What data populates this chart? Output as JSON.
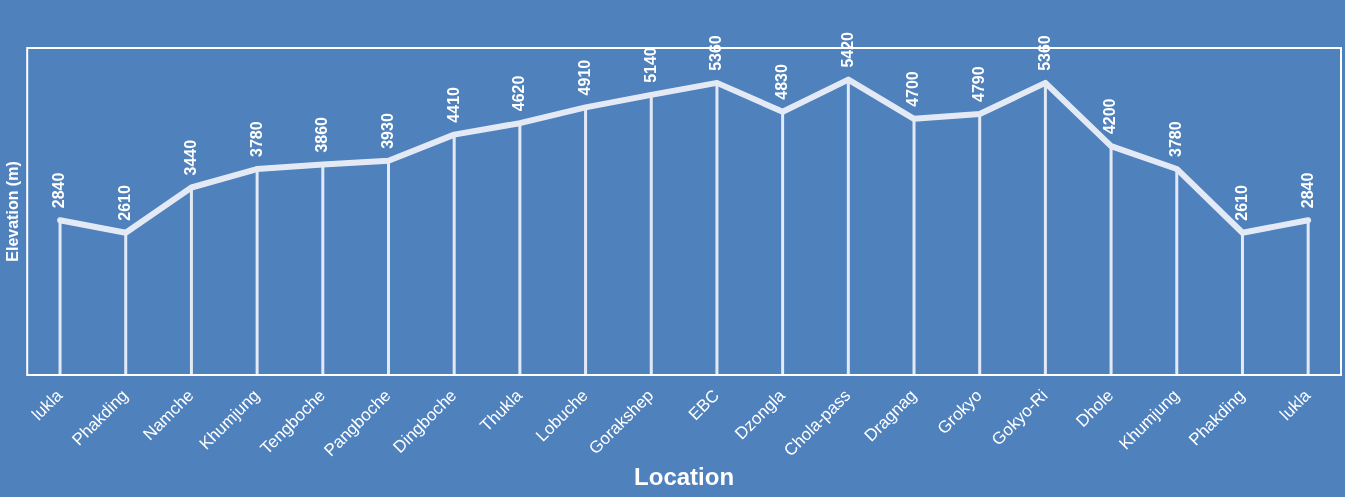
{
  "chart_data": {
    "type": "line",
    "xlabel": "Location",
    "ylabel": "Elevation (m)",
    "categories": [
      "lukla",
      "Phakding",
      "Namche",
      "Khumjung",
      "Tengboche",
      "Pangboche",
      "Dingboche",
      "Thukla",
      "Lobuche",
      "Gorakshep",
      "EBC",
      "Dzongla",
      "Chola-pass",
      "Dragnag",
      "Grokyo",
      "Gokyo-Ri",
      "Dhole",
      "Khumjung",
      "Phakding",
      "lukla"
    ],
    "series": [
      {
        "color": "#e4eaf5",
        "values": [
          2840,
          2610,
          3440,
          3780,
          3860,
          3930,
          4410,
          4620,
          4910,
          5140,
          5360,
          4830,
          5420,
          4700,
          4790,
          5360,
          4200,
          3780,
          2610,
          2840
        ]
      }
    ],
    "ylim": [
      0,
      6000
    ],
    "tick_labels": "x",
    "grid": "x",
    "legend": false,
    "marker": "none",
    "line_style": "solid",
    "data_labels": true
  }
}
